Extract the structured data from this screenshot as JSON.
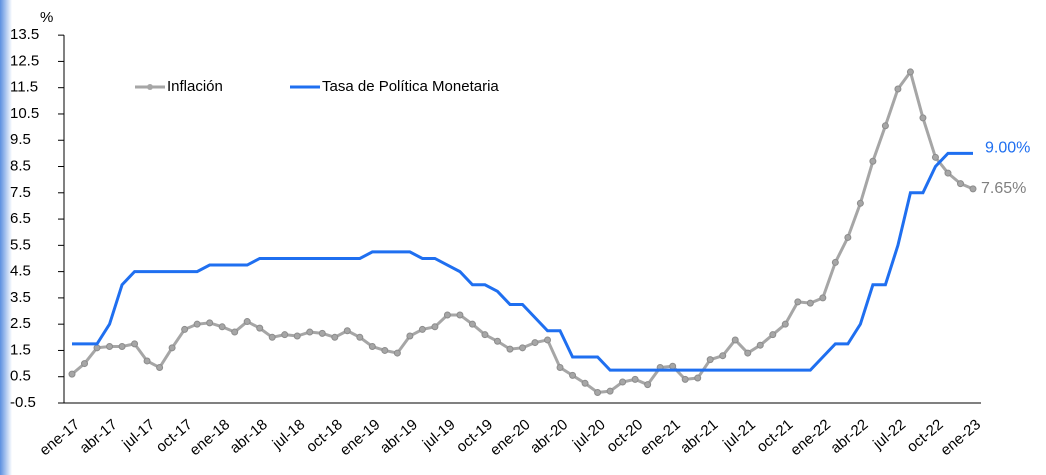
{
  "chart_data": {
    "type": "line",
    "y_label": "%",
    "categories": [
      "ene-17",
      null,
      null,
      "abr-17",
      null,
      null,
      "jul-17",
      null,
      null,
      "oct-17",
      null,
      null,
      "ene-18",
      null,
      null,
      "abr-18",
      null,
      null,
      "jul-18",
      null,
      null,
      "oct-18",
      null,
      null,
      "ene-19",
      null,
      null,
      "abr-19",
      null,
      null,
      "jul-19",
      null,
      null,
      "oct-19",
      null,
      null,
      "ene-20",
      null,
      null,
      "abr-20",
      null,
      null,
      "jul-20",
      null,
      null,
      "oct-20",
      null,
      null,
      "ene-21",
      null,
      null,
      "abr-21",
      null,
      null,
      "jul-21",
      null,
      null,
      "oct-21",
      null,
      null,
      "ene-22",
      null,
      null,
      "abr-22",
      null,
      null,
      "jul-22",
      null,
      null,
      "oct-22",
      null,
      null,
      "ene-23"
    ],
    "series": [
      {
        "name": "Inflación",
        "color": "#a6a6a6",
        "markers": true,
        "values": [
          0.6,
          1.0,
          1.6,
          1.65,
          1.65,
          1.75,
          1.1,
          0.85,
          1.6,
          2.3,
          2.5,
          2.55,
          2.4,
          2.2,
          2.6,
          2.35,
          2.0,
          2.1,
          2.05,
          2.2,
          2.15,
          2.0,
          2.25,
          2.0,
          1.65,
          1.5,
          1.4,
          2.05,
          2.3,
          2.4,
          2.85,
          2.85,
          2.5,
          2.1,
          1.85,
          1.55,
          1.6,
          1.8,
          1.9,
          0.85,
          0.55,
          0.25,
          -0.1,
          -0.05,
          0.3,
          0.4,
          0.2,
          0.85,
          0.9,
          0.4,
          0.45,
          1.15,
          1.3,
          1.9,
          1.4,
          1.7,
          2.1,
          2.5,
          3.35,
          3.3,
          3.5,
          4.85,
          5.8,
          7.1,
          8.7,
          10.05,
          11.45,
          12.1,
          10.35,
          8.85,
          8.25,
          7.85,
          7.65
        ]
      },
      {
        "name": "Tasa de Política Monetaria",
        "color": "#1f6ff0",
        "markers": false,
        "values": [
          1.75,
          1.75,
          1.75,
          2.5,
          4.0,
          4.5,
          4.5,
          4.5,
          4.5,
          4.5,
          4.5,
          4.75,
          4.75,
          4.75,
          4.75,
          5.0,
          5.0,
          5.0,
          5.0,
          5.0,
          5.0,
          5.0,
          5.0,
          5.0,
          5.25,
          5.25,
          5.25,
          5.25,
          5.0,
          5.0,
          4.75,
          4.5,
          4.0,
          4.0,
          3.75,
          3.25,
          3.25,
          2.75,
          2.25,
          2.25,
          1.25,
          1.25,
          1.25,
          0.75,
          0.75,
          0.75,
          0.75,
          0.75,
          0.75,
          0.75,
          0.75,
          0.75,
          0.75,
          0.75,
          0.75,
          0.75,
          0.75,
          0.75,
          0.75,
          0.75,
          1.25,
          1.75,
          1.75,
          2.5,
          4.0,
          4.0,
          5.5,
          7.5,
          7.5,
          8.5,
          9.0,
          9.0,
          9.0
        ]
      }
    ],
    "annotations": [
      {
        "text": "9.00%",
        "color": "#1f6ff0",
        "series": 1
      },
      {
        "text": "7.65%",
        "color": "#808080",
        "series": 0
      }
    ],
    "ylim": [
      -0.5,
      14
    ],
    "yticks": [
      -0.5,
      0.5,
      1.5,
      2.5,
      3.5,
      4.5,
      5.5,
      6.5,
      7.5,
      8.5,
      9.5,
      10.5,
      11.5,
      12.5,
      13.5
    ]
  }
}
